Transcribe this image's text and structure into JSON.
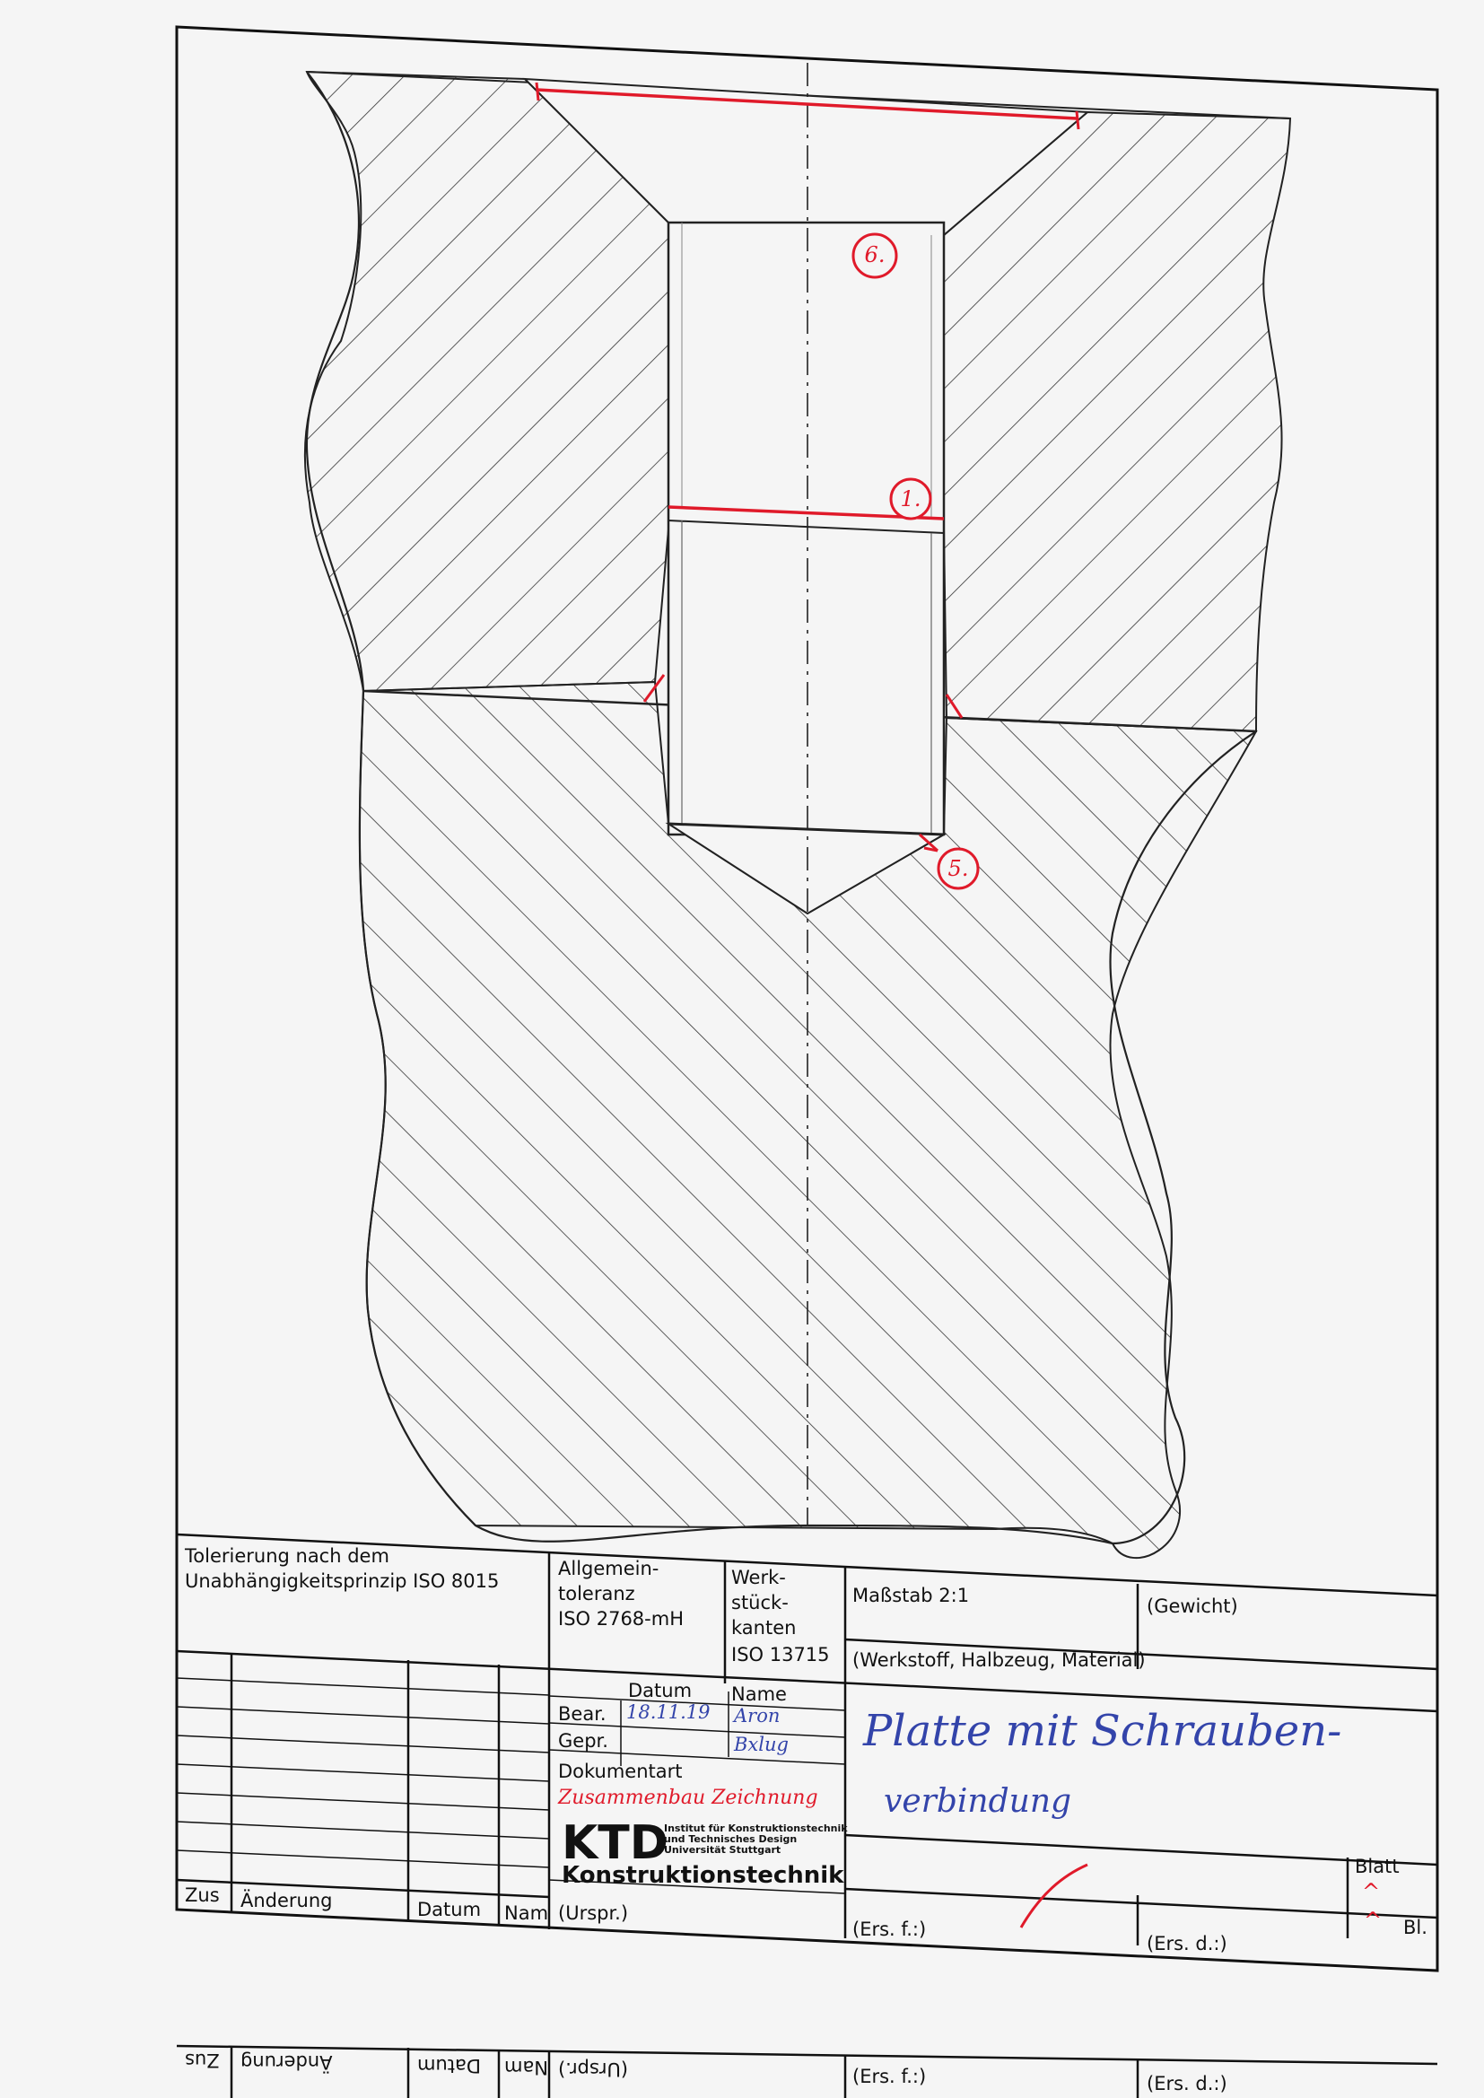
{
  "drawing": {
    "callouts": [
      "6.",
      "1.",
      "5."
    ]
  },
  "title_block": {
    "tolerance_note": {
      "line1": "Tolerierung nach dem",
      "line2": "Unabhängigkeitsprinzip ISO 8015"
    },
    "general_tolerance": {
      "line1": "Allgemein-",
      "line2": "toleranz",
      "line3": "ISO 2768-mH"
    },
    "workpiece_edges": {
      "line1": "Werk-",
      "line2": "stück-",
      "line3": "kanten",
      "line4": "ISO 13715"
    },
    "scale": "Maßstab 2:1",
    "weight": "(Gewicht)",
    "material": "(Werkstoff, Halbzeug, Material)",
    "datum_header": "Datum",
    "name_header": "Name",
    "bear_label": "Bear.",
    "bear_date": "18.11.19",
    "bear_name": "Aron",
    "gepr_label": "Gepr.",
    "gepr_name": "Bxlug",
    "doc_type_label": "Dokumentart",
    "doc_type_value": "Zusammenbau Zeichnung",
    "institute": {
      "logo": "KTD",
      "line1": "Institut für Konstruktionstechnik",
      "line2": "und Technisches Design",
      "line3": "Universität Stuttgart",
      "name": "Konstruktionstechnik"
    },
    "drawing_title": {
      "line1": "Platte mit Schrauben-",
      "line2": "verbindung"
    },
    "blatt_label": "Blatt",
    "blatt_value": "^",
    "bl_value": "^",
    "bl_label": "Bl.",
    "revision_cols": {
      "zus": "Zus",
      "aenderung": "Änderung",
      "datum": "Datum",
      "nam": "Nam"
    },
    "urspr": "(Urspr.)",
    "ers_f": "(Ers. f.:)",
    "ers_d": "(Ers. d.:)"
  },
  "bottom_mirror": {
    "zus": "Zus",
    "aenderung": "Änderung",
    "datum": "Datum",
    "nam": "Nam",
    "urspr": "(Urspr.)",
    "ers_f": "(Ers. f.:)",
    "ers_d": "(Ers. d.:)"
  }
}
